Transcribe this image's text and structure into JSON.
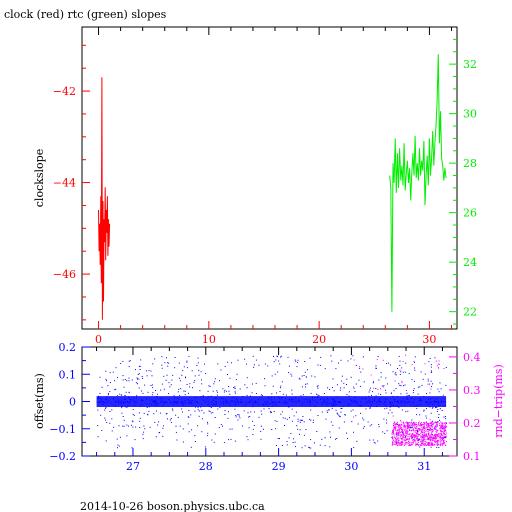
{
  "title": "clock (red) rtc (green) slopes",
  "footer": "2014-10-26 boson.physics.ubc.ca",
  "colors": {
    "clock": "#ff0000",
    "rtc": "#00ee00",
    "offset": "#0000ff",
    "rndtrip": "#ff00ff",
    "axis": "#000000"
  },
  "chart_data": [
    {
      "type": "line",
      "title": "clock (red) rtc (green) slopes",
      "xlim": [
        -1.5,
        32.5
      ],
      "x_ticks": [
        0,
        10,
        20,
        30
      ],
      "ylabel": "clockslope",
      "ylim": [
        -47.2,
        -40.6
      ],
      "y_ticks": [
        -42,
        -44,
        -46
      ],
      "y_tick_labels": [
        "−42",
        "−44",
        "−46"
      ],
      "y2lim": [
        21.3,
        33.5
      ],
      "y2_ticks": [
        22,
        24,
        26,
        28,
        30,
        32
      ],
      "series": [
        {
          "name": "clock",
          "axis": "left",
          "color": "#ff0000",
          "x": [
            0.0,
            0.05,
            0.1,
            0.15,
            0.2,
            0.25,
            0.3,
            0.35,
            0.4,
            0.45,
            0.5,
            0.55,
            0.6,
            0.65,
            0.7,
            0.75,
            0.8,
            0.85,
            0.9,
            0.95,
            1.0
          ],
          "y": [
            -44.6,
            -45.5,
            -44.9,
            -45.8,
            -44.3,
            -46.2,
            -41.7,
            -47.0,
            -44.4,
            -46.6,
            -44.8,
            -45.3,
            -44.1,
            -45.7,
            -44.6,
            -45.1,
            -44.3,
            -45.6,
            -44.8,
            -45.4,
            -44.9
          ]
        },
        {
          "name": "rtc",
          "axis": "right",
          "color": "#00ee00",
          "x": [
            26.4,
            26.5,
            26.6,
            26.7,
            26.8,
            26.9,
            27.0,
            27.1,
            27.2,
            27.3,
            27.4,
            27.5,
            27.6,
            27.7,
            27.8,
            27.9,
            28.0,
            28.1,
            28.2,
            28.3,
            28.4,
            28.5,
            28.6,
            28.7,
            28.8,
            28.9,
            29.0,
            29.1,
            29.2,
            29.3,
            29.4,
            29.5,
            29.6,
            29.7,
            29.8,
            29.9,
            30.0,
            30.1,
            30.2,
            30.3,
            30.4,
            30.5,
            30.6,
            30.7,
            30.8,
            30.9,
            31.0,
            31.1,
            31.2,
            31.3,
            31.4,
            31.5
          ],
          "y": [
            27.5,
            27.0,
            22.0,
            28.0,
            27.2,
            29.0,
            26.8,
            28.4,
            27.0,
            28.6,
            27.3,
            27.9,
            27.1,
            28.8,
            26.9,
            27.6,
            28.1,
            27.2,
            27.8,
            26.5,
            27.6,
            28.4,
            27.5,
            29.1,
            27.4,
            28.0,
            27.3,
            28.6,
            27.5,
            28.1,
            27.7,
            28.9,
            26.3,
            27.5,
            28.3,
            27.1,
            29.0,
            27.5,
            28.2,
            29.3,
            27.9,
            28.8,
            29.5,
            30.5,
            32.4,
            28.8,
            30.1,
            28.2,
            27.9,
            27.3,
            27.8,
            27.4
          ]
        }
      ]
    },
    {
      "type": "scatter",
      "xlim": [
        26.3,
        31.45
      ],
      "x_ticks": [
        27,
        28,
        29,
        30,
        31
      ],
      "ylabel": "offset(ms)",
      "ylim": [
        -0.2,
        0.2
      ],
      "y_ticks": [
        0.2,
        0.1,
        0,
        -0.1,
        -0.2
      ],
      "y_tick_labels": [
        "0.2",
        "0.1",
        "0",
        "−0.1",
        "−0.2"
      ],
      "y2label": "rnd−trip(ms)",
      "y2lim": [
        0.1,
        0.43
      ],
      "y2_ticks": [
        0.1,
        0.2,
        0.3,
        0.4
      ],
      "series": [
        {
          "name": "offset",
          "axis": "left",
          "color": "#0000ff",
          "x_range": [
            26.5,
            31.3
          ],
          "band": [
            -0.02,
            0.02
          ],
          "outlier_range": [
            -0.17,
            0.17
          ]
        },
        {
          "name": "rnd-trip",
          "axis": "right",
          "color": "#ff00ff",
          "x_range": [
            30.55,
            31.3
          ],
          "band": [
            0.133,
            0.205
          ]
        }
      ]
    }
  ]
}
